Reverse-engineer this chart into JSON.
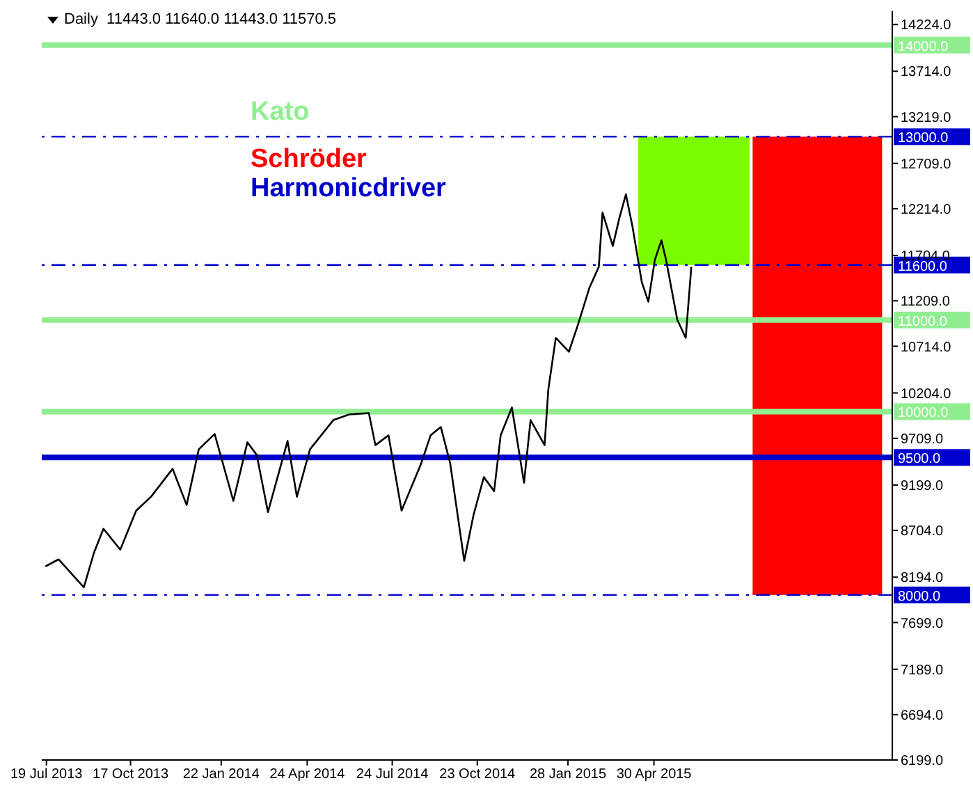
{
  "chart_data": {
    "type": "line",
    "title": "Daily  11443.0 11640.0 11443.0 11570.5",
    "annotations": [
      "Kato",
      "Schröder",
      "Harmonicdriver"
    ],
    "x": [
      "2013-07-18",
      "2013-08-01",
      "2013-08-28",
      "2013-09-08",
      "2013-09-18",
      "2013-10-06",
      "2013-10-23",
      "2013-11-08",
      "2013-12-01",
      "2013-12-16",
      "2013-12-29",
      "2014-01-15",
      "2014-02-04",
      "2014-02-19",
      "2014-03-01",
      "2014-03-13",
      "2014-04-03",
      "2014-04-13",
      "2014-04-27",
      "2014-05-22",
      "2014-06-08",
      "2014-06-29",
      "2014-07-06",
      "2014-07-20",
      "2014-08-03",
      "2014-08-24",
      "2014-09-03",
      "2014-09-14",
      "2014-09-24",
      "2014-10-09",
      "2014-10-19",
      "2014-10-30",
      "2014-11-10",
      "2014-11-17",
      "2014-11-29",
      "2014-12-12",
      "2014-12-19",
      "2015-01-03",
      "2015-01-07",
      "2015-01-15",
      "2015-01-29",
      "2015-02-08",
      "2015-02-20",
      "2015-03-02",
      "2015-03-06",
      "2015-03-17",
      "2015-03-24",
      "2015-03-31",
      "2015-04-07",
      "2015-04-17",
      "2015-04-24",
      "2015-05-01",
      "2015-05-08",
      "2015-05-13",
      "2015-05-25",
      "2015-06-03",
      "2015-06-09"
    ],
    "series": [
      {
        "type": "bar",
        "x": [
          "2015-06-12",
          "2015-10-22"
        ],
        "base": [
          11600,
          8000
        ],
        "values": [
          1400,
          5000
        ],
        "colors": [
          "#7cfc00",
          "#ff0000"
        ]
      },
      {
        "color": "#000000",
        "values": [
          8312,
          8388,
          8084,
          8464,
          8722,
          8494,
          8920,
          9072,
          9376,
          8981,
          9589,
          9756,
          9026,
          9665,
          9528,
          8904,
          9680,
          9072,
          9589,
          9908,
          9969,
          9984,
          9634,
          9741,
          8920,
          9436,
          9741,
          9832,
          9436,
          8373,
          8874,
          9285,
          9133,
          9741,
          10045,
          9224,
          9908,
          9634,
          10242,
          10805,
          10653,
          10957,
          11352,
          11580,
          12173,
          11808,
          12112,
          12370,
          12021,
          11413,
          11200,
          11656,
          11869,
          11656,
          11002,
          10805,
          11580
        ]
      }
    ],
    "xlim": [
      "2013-07-14",
      "2016-01-10"
    ],
    "xticks": [
      {
        "value": "2013-07-19",
        "label": "19 Jul 2013"
      },
      {
        "value": "2013-10-17",
        "label": "17 Oct 2013"
      },
      {
        "value": "2014-01-22",
        "label": "22 Jan 2014"
      },
      {
        "value": "2014-04-24",
        "label": "24 Apr 2014"
      },
      {
        "value": "2014-07-24",
        "label": "24 Jul 2014"
      },
      {
        "value": "2014-10-23",
        "label": "23 Oct 2014"
      },
      {
        "value": "2015-01-28",
        "label": "28 Jan 2015"
      },
      {
        "value": "2015-04-30",
        "label": "30 Apr 2015"
      }
    ],
    "ylim": [
      6199,
      14370
    ],
    "yticks": [
      {
        "value": 6199,
        "label": "6199.0"
      },
      {
        "value": 6694,
        "label": "6694.0"
      },
      {
        "value": 7189,
        "label": "7189.0"
      },
      {
        "value": 7699,
        "label": "7699.0"
      },
      {
        "value": 8194,
        "label": "8194.0"
      },
      {
        "value": 8704,
        "label": "8704.0"
      },
      {
        "value": 9199,
        "label": "9199.0"
      },
      {
        "value": 9709,
        "label": "9709.0"
      },
      {
        "value": 10204,
        "label": "10204.0"
      },
      {
        "value": 10714,
        "label": "10714.0"
      },
      {
        "value": 11209,
        "label": "11209.0"
      },
      {
        "value": 11704,
        "label": "11704.0"
      },
      {
        "value": 12214,
        "label": "12214.0"
      },
      {
        "value": 12709,
        "label": "12709.0"
      },
      {
        "value": 13219,
        "label": "13219.0"
      },
      {
        "value": 13714,
        "label": "13714.0"
      },
      {
        "value": 14224,
        "label": "14224.0"
      }
    ],
    "ref_lines": [
      {
        "axis": "y",
        "value": 14000,
        "label": "14000.0",
        "color": "#90ee90",
        "line_style": "solid"
      },
      {
        "axis": "y",
        "value": 13000,
        "label": "13000.0",
        "color": "#0000cd",
        "line_style": "dashed"
      },
      {
        "axis": "y",
        "value": 11600,
        "label": "11600.0",
        "color": "#0000cd",
        "line_style": "dashed"
      },
      {
        "axis": "y",
        "value": 11000,
        "label": "11000.0",
        "color": "#90ee90",
        "line_style": "solid"
      },
      {
        "axis": "y",
        "value": 10000,
        "label": "10000.0",
        "color": "#90ee90",
        "line_style": "solid"
      },
      {
        "axis": "y",
        "value": 9500,
        "label": "9500.0",
        "color": "#0000cd",
        "line_style": "solid"
      },
      {
        "axis": "y",
        "value": 8000,
        "label": "8000.0",
        "color": "#0000cd",
        "line_style": "dashed"
      }
    ],
    "marker": "none",
    "line_style": "solid"
  }
}
